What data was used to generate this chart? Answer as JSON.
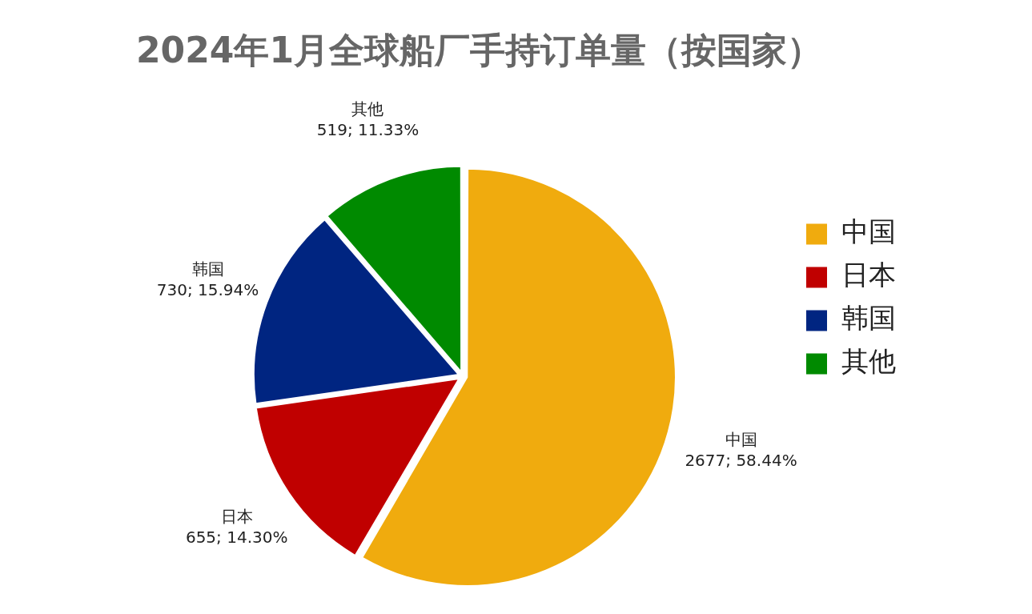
{
  "chart_data": {
    "type": "pie",
    "title": "2024年1月全球船厂手持订单量（按国家）",
    "categories": [
      "中国",
      "日本",
      "韩国",
      "其他"
    ],
    "values": [
      2677,
      655,
      730,
      519
    ],
    "colors": [
      "#f0ab0e",
      "#c00000",
      "#002581",
      "#008a00"
    ],
    "value_labels": [
      "2677; 58.44%",
      "655; 14.30%",
      "730; 15.94%",
      "519; 11.33%"
    ],
    "legend": "right"
  }
}
